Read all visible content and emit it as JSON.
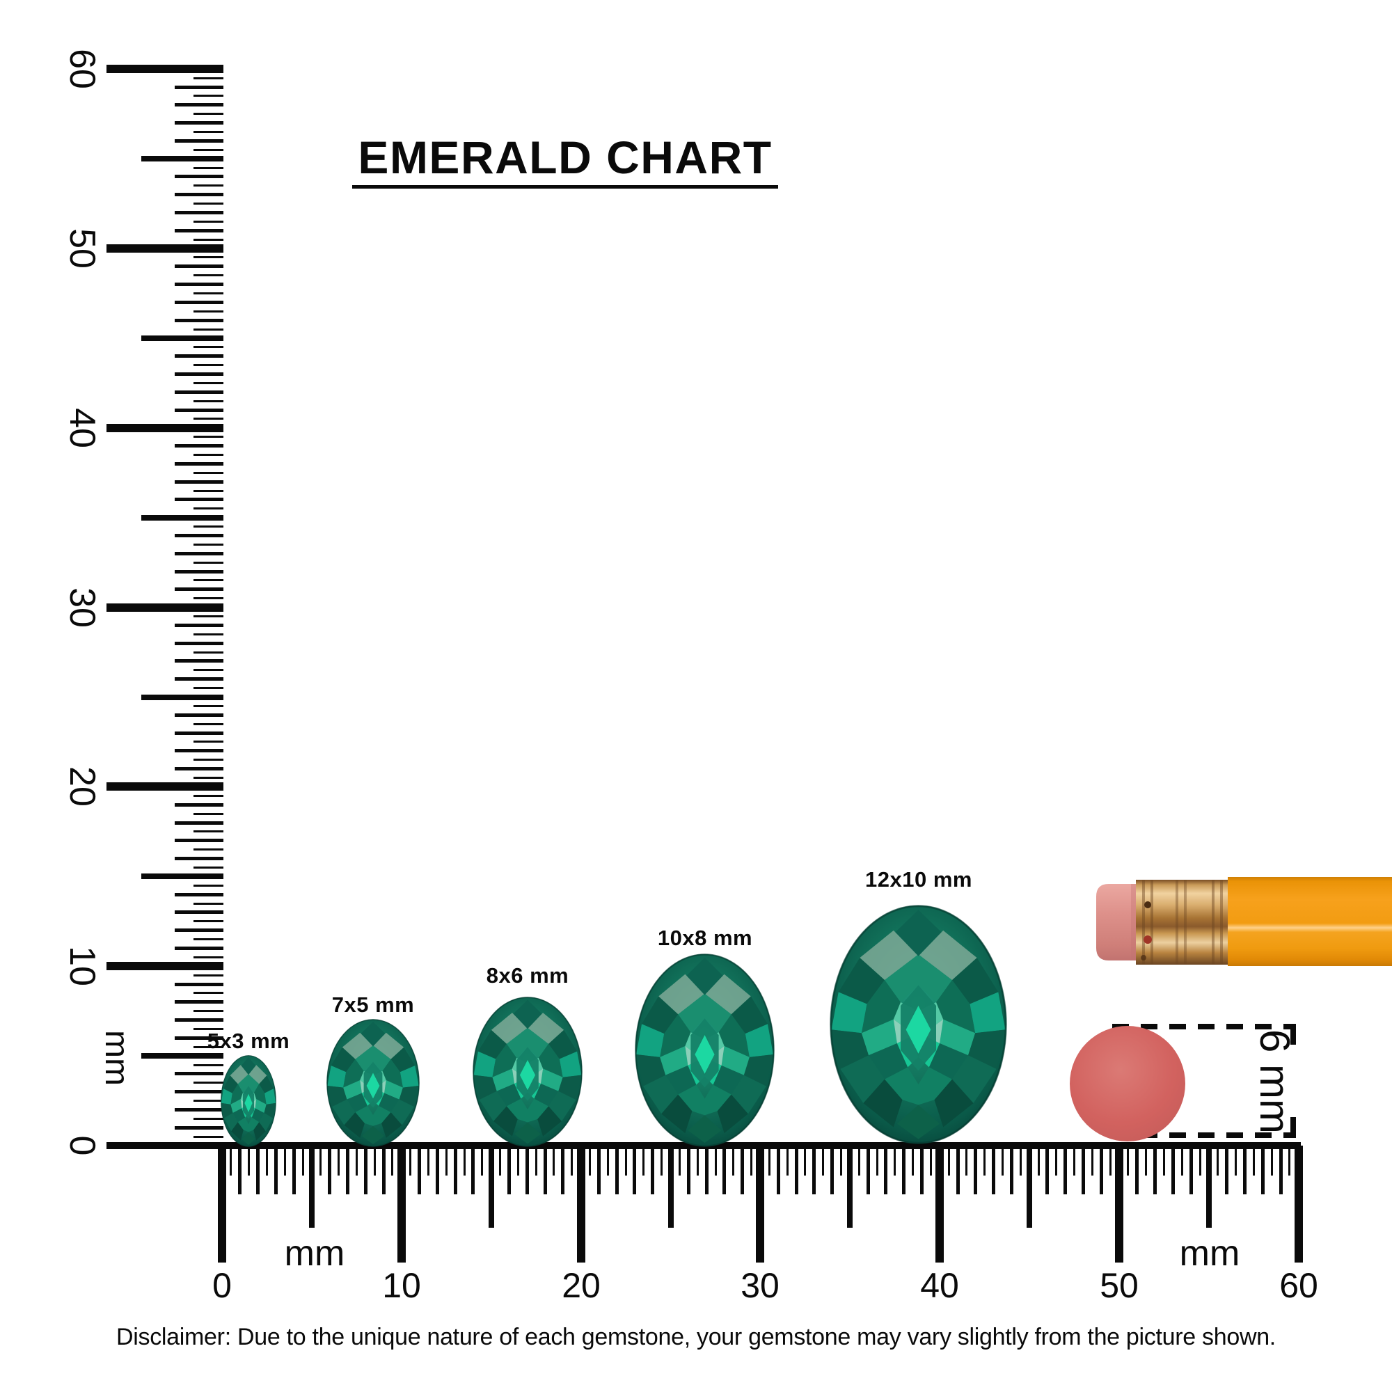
{
  "title": {
    "text": "EMERALD CHART"
  },
  "rulers": {
    "vertical": {
      "unit": "mm",
      "labels": [
        "0",
        "10",
        "20",
        "30",
        "40",
        "50",
        "60"
      ]
    },
    "horizontal": {
      "unit": "mm",
      "labels": [
        "0",
        "10",
        "20",
        "30",
        "40",
        "50",
        "60"
      ]
    }
  },
  "gems": [
    {
      "label": "5x3 mm",
      "size_mm": "5x3"
    },
    {
      "label": "7x5 mm",
      "size_mm": "7x5"
    },
    {
      "label": "8x6 mm",
      "size_mm": "8x6"
    },
    {
      "label": "10x8 mm",
      "size_mm": "10x8"
    },
    {
      "label": "12x10 mm",
      "size_mm": "12x10"
    }
  ],
  "size_reference": {
    "label": "6 mm"
  },
  "disclaimer": "Disclaimer: Due to the unique nature of each gemstone, your gemstone may vary slightly from the picture shown.",
  "colors": {
    "ink": "#0a0a0a",
    "gem_base": "#117059",
    "gem_bright": "#1cd8a2",
    "pencil_body": "#f7a11c",
    "pencil_ferrule": "#d9ad6e",
    "pencil_eraser": "#dd908a",
    "reference_circle": "#d2625f"
  }
}
